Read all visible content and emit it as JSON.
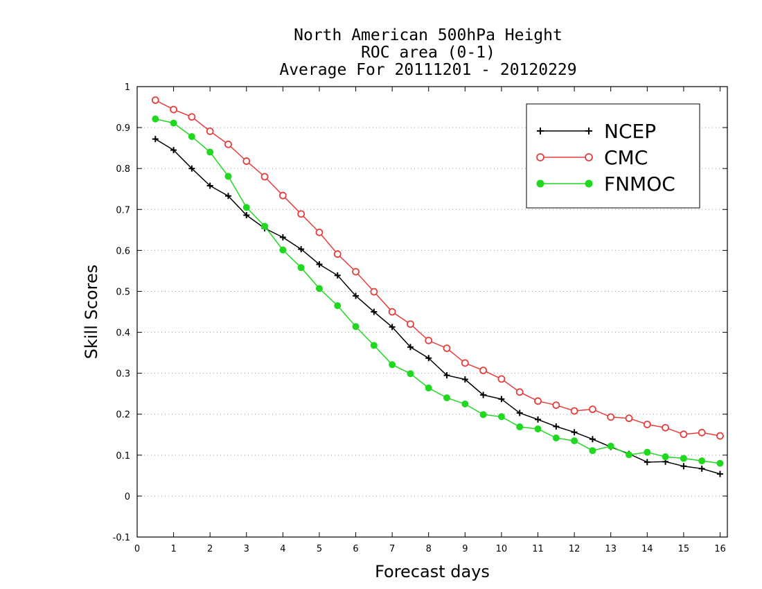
{
  "chart_data": {
    "type": "line",
    "title": [
      "North American 500hPa Height",
      "ROC area (0-1)",
      "Average For 20111201 - 20120229"
    ],
    "xlabel": "Forecast days",
    "ylabel": "Skill Scores",
    "xlim": [
      0,
      16.2
    ],
    "ylim": [
      -0.1,
      1
    ],
    "xticks": [
      0,
      1,
      2,
      3,
      4,
      5,
      6,
      7,
      8,
      9,
      10,
      11,
      12,
      13,
      14,
      15,
      16
    ],
    "yticks": [
      -0.1,
      0,
      0.1,
      0.2,
      0.3,
      0.4,
      0.5,
      0.6,
      0.7,
      0.8,
      0.9,
      1
    ],
    "ytick_labels": [
      "-0.1",
      "0",
      "0.1",
      "0.2",
      "0.3",
      "0.4",
      "0.5",
      "0.6",
      "0.7",
      "0.8",
      "0.9",
      "1"
    ],
    "grid": "horizontal dotted",
    "legend_position": "top-right",
    "x": [
      0.5,
      1,
      1.5,
      2,
      2.5,
      3,
      3.5,
      4,
      4.5,
      5,
      5.5,
      6,
      6.5,
      7,
      7.5,
      8,
      8.5,
      9,
      9.5,
      10,
      10.5,
      11,
      11.5,
      12,
      12.5,
      13,
      13.5,
      14,
      14.5,
      15,
      15.5,
      16
    ],
    "series": [
      {
        "name": "NCEP",
        "color": "#000000",
        "marker": "plus",
        "values": [
          0.872,
          0.845,
          0.8,
          0.758,
          0.733,
          0.686,
          0.654,
          0.632,
          0.603,
          0.566,
          0.539,
          0.489,
          0.45,
          0.413,
          0.364,
          0.337,
          0.295,
          0.285,
          0.247,
          0.237,
          0.203,
          0.187,
          0.17,
          0.156,
          0.139,
          0.12,
          0.103,
          0.083,
          0.084,
          0.073,
          0.067,
          0.054
        ]
      },
      {
        "name": "CMC",
        "color": "#e83c3c",
        "marker": "open-circle",
        "values": [
          0.967,
          0.944,
          0.926,
          0.891,
          0.859,
          0.818,
          0.78,
          0.734,
          0.689,
          0.644,
          0.591,
          0.548,
          0.499,
          0.45,
          0.42,
          0.38,
          0.361,
          0.325,
          0.307,
          0.286,
          0.254,
          0.232,
          0.222,
          0.208,
          0.212,
          0.193,
          0.19,
          0.175,
          0.167,
          0.151,
          0.155,
          0.147
        ]
      },
      {
        "name": "FNMOC",
        "color": "#1fd81f",
        "marker": "filled-circle",
        "values": [
          0.921,
          0.911,
          0.878,
          0.84,
          0.781,
          0.705,
          0.659,
          0.601,
          0.558,
          0.507,
          0.465,
          0.414,
          0.368,
          0.321,
          0.299,
          0.264,
          0.24,
          0.225,
          0.199,
          0.194,
          0.169,
          0.164,
          0.142,
          0.135,
          0.111,
          0.122,
          0.101,
          0.107,
          0.096,
          0.092,
          0.086,
          0.08
        ]
      }
    ]
  }
}
